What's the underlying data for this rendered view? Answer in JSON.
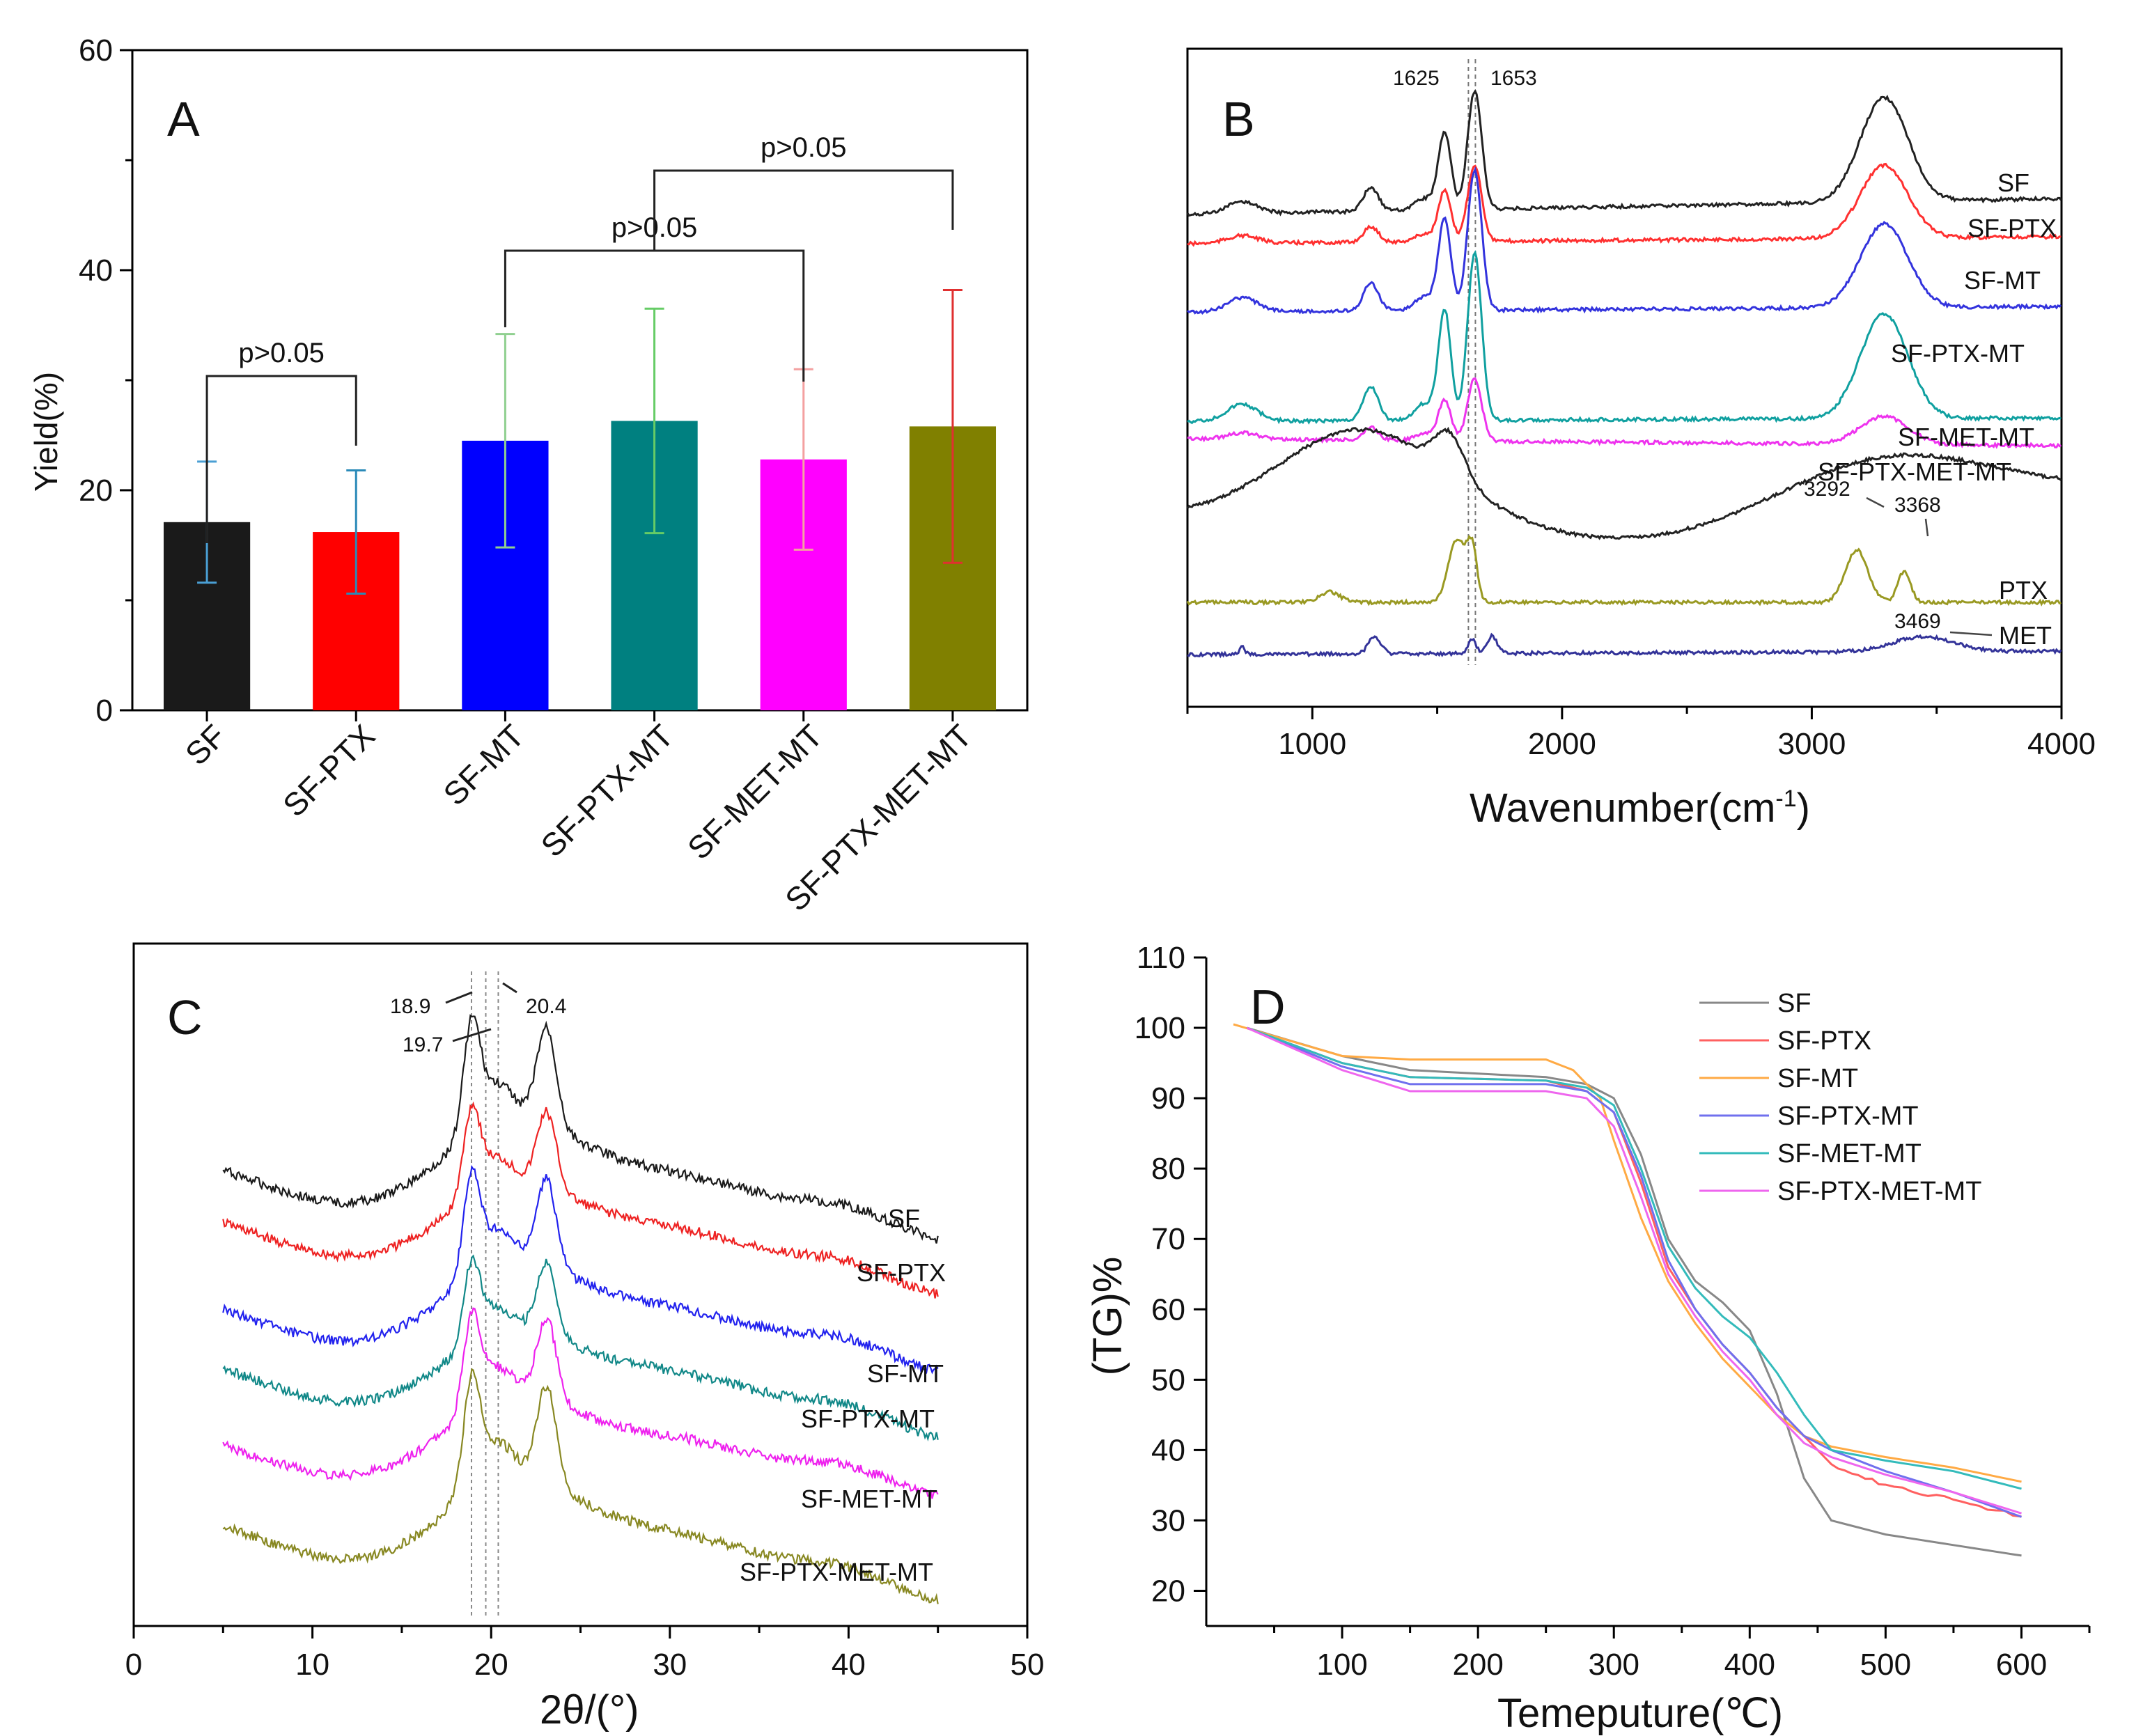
{
  "chart_data": [
    {
      "panel": "A",
      "type": "bar",
      "ylabel": "Yield(%)",
      "ylim": [
        0,
        60
      ],
      "yticks": [
        0,
        20,
        40,
        60
      ],
      "categories": [
        "SF",
        "SF-PTX",
        "SF-MT",
        "SF-PTX-MT",
        "SF-MET-MT",
        "SF-PTX-MET-MT"
      ],
      "values": [
        17.1,
        16.2,
        24.5,
        26.3,
        22.8,
        25.8
      ],
      "errors": [
        5.5,
        5.6,
        9.7,
        10.2,
        8.2,
        12.4
      ],
      "colors": [
        "#1a1a1a",
        "#ff0000",
        "#0000ff",
        "#008080",
        "#ff00ff",
        "#808000"
      ],
      "error_colors": [
        "#4a9fd4",
        "#2a8ab8",
        "#90d090",
        "#66cc66",
        "#f4a0a0",
        "#e03030"
      ],
      "annotations": [
        {
          "text": "p>0.05",
          "from": 0,
          "to": 1
        },
        {
          "text": "p>0.05",
          "from": 2,
          "to": 4
        },
        {
          "text": "p>0.05",
          "from": 3,
          "to": 5
        }
      ]
    },
    {
      "panel": "B",
      "type": "line",
      "xlabel": "Wavenumber(cm",
      "xlabel_sup": "-1",
      "xlabel_close": ")",
      "xlim": [
        500,
        4000
      ],
      "xticks": [
        1000,
        2000,
        3000,
        4000
      ],
      "series": [
        {
          "name": "SF",
          "color": "#222222"
        },
        {
          "name": "SF-PTX",
          "color": "#ff3030"
        },
        {
          "name": "SF-MT",
          "color": "#3333dd"
        },
        {
          "name": "SF-PTX-MT",
          "color": "#10a0a0"
        },
        {
          "name": "SF-MET-MT",
          "color": "#ee33ee"
        },
        {
          "name": "SF-PTX-MET-MT",
          "color": "#222222"
        },
        {
          "name": "PTX",
          "color": "#999922"
        },
        {
          "name": "MET",
          "color": "#333399"
        }
      ],
      "annotations": [
        "1625",
        "1653",
        "3292",
        "3368",
        "3469"
      ]
    },
    {
      "panel": "C",
      "type": "line",
      "xlabel": "2θ/(°)",
      "xlim": [
        0,
        50
      ],
      "xticks": [
        0,
        10,
        20,
        30,
        40,
        50
      ],
      "series": [
        {
          "name": "SF",
          "color": "#1a1a1a"
        },
        {
          "name": "SF-PTX",
          "color": "#ee2222"
        },
        {
          "name": "SF-MT",
          "color": "#2222ee"
        },
        {
          "name": "SF-PTX-MT",
          "color": "#118888"
        },
        {
          "name": "SF-MET-MT",
          "color": "#ee22ee"
        },
        {
          "name": "SF-PTX-MET-MT",
          "color": "#888822"
        }
      ],
      "annotations": [
        "18.9",
        "19.7",
        "20.4"
      ]
    },
    {
      "panel": "D",
      "type": "line",
      "xlabel": "Temeputure(℃)",
      "ylabel": "(TG)%",
      "xlim": [
        0,
        650
      ],
      "ylim": [
        15,
        110
      ],
      "xticks": [
        100,
        200,
        300,
        400,
        500,
        600
      ],
      "yticks": [
        20,
        30,
        40,
        50,
        60,
        70,
        80,
        90,
        100,
        110
      ],
      "series": [
        {
          "name": "SF",
          "color": "#888888",
          "x": [
            30,
            100,
            150,
            250,
            280,
            300,
            320,
            340,
            360,
            380,
            400,
            420,
            440,
            460,
            500,
            550,
            600
          ],
          "y": [
            100,
            96,
            94,
            93,
            92,
            90,
            82,
            70,
            64,
            61,
            57,
            48,
            36,
            30,
            28,
            26.5,
            25
          ]
        },
        {
          "name": "SF-PTX",
          "color": "#ff6060",
          "x": [
            30,
            100,
            150,
            250,
            280,
            300,
            320,
            340,
            360,
            380,
            400,
            420,
            440,
            460,
            500,
            550,
            600
          ],
          "y": [
            100,
            95,
            93,
            92.5,
            91,
            88,
            78,
            66,
            60,
            55,
            51,
            46,
            42,
            38,
            35,
            33,
            30.5
          ]
        },
        {
          "name": "SF-MT",
          "color": "#ffaa44",
          "x": [
            20,
            100,
            150,
            250,
            270,
            290,
            300,
            320,
            340,
            360,
            380,
            400,
            420,
            440,
            460,
            500,
            550,
            600
          ],
          "y": [
            100.5,
            96,
            95.5,
            95.5,
            94,
            90,
            84,
            73,
            64,
            58,
            53,
            49,
            45,
            42,
            40.5,
            39,
            37.5,
            35.5
          ]
        },
        {
          "name": "SF-PTX-MT",
          "color": "#7070ee",
          "x": [
            30,
            100,
            150,
            250,
            280,
            300,
            320,
            340,
            360,
            380,
            400,
            420,
            440,
            460,
            500,
            550,
            600
          ],
          "y": [
            100,
            94.5,
            92,
            92,
            91,
            88,
            79,
            67,
            60,
            55,
            51,
            46,
            42,
            40,
            37,
            34,
            30.5
          ]
        },
        {
          "name": "SF-MET-MT",
          "color": "#33bbbb",
          "x": [
            30,
            100,
            150,
            250,
            280,
            300,
            320,
            340,
            360,
            380,
            400,
            420,
            440,
            460,
            500,
            550,
            600
          ],
          "y": [
            100,
            95,
            93,
            92.5,
            91.5,
            89,
            80,
            69,
            63,
            59,
            56,
            51,
            45,
            40,
            38.5,
            37,
            34.5
          ]
        },
        {
          "name": "SF-PTX-MET-MT",
          "color": "#ee66ee",
          "x": [
            30,
            100,
            150,
            250,
            280,
            300,
            320,
            340,
            360,
            380,
            400,
            420,
            440,
            460,
            500,
            550,
            600
          ],
          "y": [
            100,
            94,
            91,
            91,
            90,
            86,
            76,
            65,
            59,
            54,
            50,
            45,
            41,
            39,
            36.5,
            34,
            31
          ]
        }
      ]
    }
  ],
  "labels": {
    "panel_a": "A",
    "panel_b": "B",
    "panel_c": "C",
    "panel_d": "D",
    "b_peak_1625": "1625",
    "b_peak_1653": "1653",
    "b_peak_3292": "3292",
    "b_peak_3368": "3368",
    "b_peak_3469": "3469",
    "c_peak_189": "18.9",
    "c_peak_197": "19.7",
    "c_peak_204": "20.4"
  }
}
